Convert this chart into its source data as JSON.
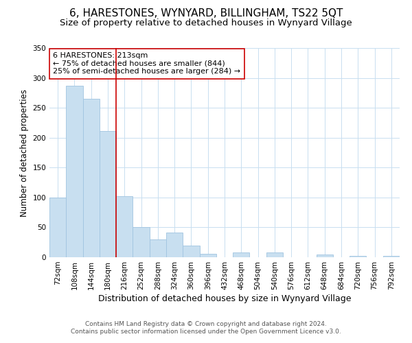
{
  "title": "6, HARESTONES, WYNYARD, BILLINGHAM, TS22 5QT",
  "subtitle": "Size of property relative to detached houses in Wynyard Village",
  "xlabel": "Distribution of detached houses by size in Wynyard Village",
  "ylabel": "Number of detached properties",
  "bin_labels": [
    "72sqm",
    "108sqm",
    "144sqm",
    "180sqm",
    "216sqm",
    "252sqm",
    "288sqm",
    "324sqm",
    "360sqm",
    "396sqm",
    "432sqm",
    "468sqm",
    "504sqm",
    "540sqm",
    "576sqm",
    "612sqm",
    "648sqm",
    "684sqm",
    "720sqm",
    "756sqm",
    "792sqm"
  ],
  "bin_edges": [
    72,
    108,
    144,
    180,
    216,
    252,
    288,
    324,
    360,
    396,
    432,
    468,
    504,
    540,
    576,
    612,
    648,
    684,
    720,
    756,
    792
  ],
  "bar_heights": [
    100,
    287,
    265,
    211,
    102,
    51,
    30,
    41,
    20,
    6,
    0,
    8,
    0,
    8,
    0,
    0,
    5,
    0,
    2,
    0,
    2
  ],
  "bar_color": "#c8dff0",
  "bar_edge_color": "#a0c4e0",
  "vline_x": 216,
  "vline_color": "#cc0000",
  "annotation_lines": [
    "6 HARESTONES: 213sqm",
    "← 75% of detached houses are smaller (844)",
    "25% of semi-detached houses are larger (284) →"
  ],
  "ylim": [
    0,
    350
  ],
  "yticks": [
    0,
    50,
    100,
    150,
    200,
    250,
    300,
    350
  ],
  "footer_line1": "Contains HM Land Registry data © Crown copyright and database right 2024.",
  "footer_line2": "Contains public sector information licensed under the Open Government Licence v3.0.",
  "title_fontsize": 11,
  "subtitle_fontsize": 9.5,
  "xlabel_fontsize": 9,
  "ylabel_fontsize": 8.5,
  "tick_fontsize": 7.5,
  "annotation_fontsize": 8,
  "footer_fontsize": 6.5,
  "background_color": "#ffffff",
  "grid_color": "#c8dff0"
}
